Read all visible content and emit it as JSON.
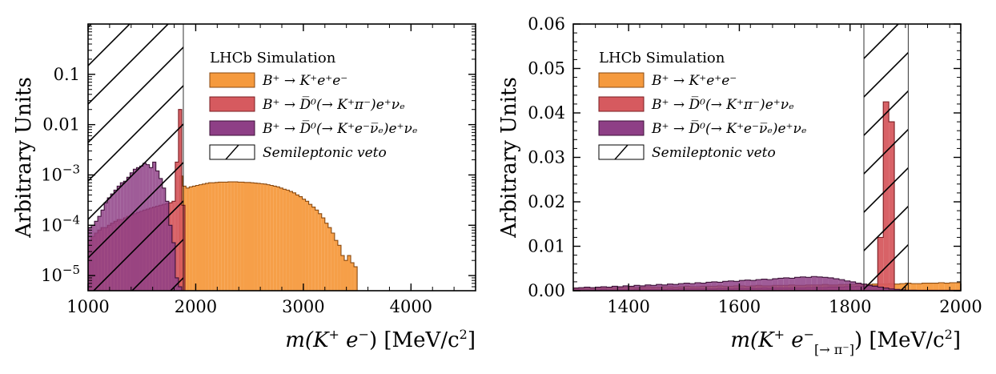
{
  "colors": {
    "signal": "#f59a3e",
    "signal_edge": "#8a4a10",
    "dpi": "#d65a5f",
    "dpi_edge": "#7a1d22",
    "dsl": "#8e3f86",
    "dsl_edge": "#3d1238",
    "veto_hatch": "#000000"
  },
  "chart_data": [
    {
      "type": "histogram",
      "yscale": "log",
      "xlabel_main": "m(K",
      "xlabel_sup1": "+",
      "xlabel_mid": " e",
      "xlabel_sup2": "−",
      "xlabel_tail": ") [MeV/c",
      "xlabel_sup3": "2",
      "xlabel_end": "]",
      "ylabel": "Arbitrary Units",
      "xlim": [
        1000,
        4600
      ],
      "ylim": [
        5e-06,
        1.0
      ],
      "xticks": [
        1000,
        2000,
        3000,
        4000
      ],
      "xtick_labels": [
        "1000",
        "2000",
        "3000",
        "4000"
      ],
      "yticks": [
        1e-05,
        0.0001,
        0.001,
        0.01,
        0.1
      ],
      "ytick_labels": [
        {
          "base": "10",
          "exp": "−5"
        },
        {
          "base": "10",
          "exp": "−4"
        },
        {
          "base": "10",
          "exp": "−3"
        },
        {
          "base": "",
          "exp": "",
          "text": "0.01"
        },
        {
          "base": "",
          "exp": "",
          "text": "0.1"
        }
      ],
      "veto": {
        "x0": 1000,
        "x1": 1885
      },
      "legend": {
        "placement": "top-right",
        "title": "LHCb Simulation",
        "entries": [
          {
            "series": "signal",
            "label": "B⁺ → K⁺e⁺e⁻"
          },
          {
            "series": "dpi",
            "label": "B⁺ → D̅⁰(→ K⁺π⁻)e⁺νₑ"
          },
          {
            "series": "dsl",
            "label": "B⁺ → D̅⁰(→ K⁺e⁻ν̅ₑ)e⁺νₑ"
          },
          {
            "series": "veto",
            "label": "Semileptonic veto"
          }
        ]
      },
      "series": [
        {
          "name": "signal",
          "edges_start": 1850,
          "bin_width": 30,
          "values": [
            0.00095,
            0.0006,
            0.00055,
            0.00058,
            0.0006,
            0.00062,
            0.00064,
            0.00066,
            0.00068,
            0.0007,
            0.0007,
            0.00071,
            0.00072,
            0.00072,
            0.00072,
            0.00073,
            0.00073,
            0.00073,
            0.00072,
            0.00072,
            0.00071,
            0.00071,
            0.0007,
            0.00069,
            0.00068,
            0.00067,
            0.00066,
            0.00064,
            0.00062,
            0.0006,
            0.00058,
            0.00055,
            0.00052,
            0.0005,
            0.00047,
            0.00044,
            0.0004,
            0.00037,
            0.00033,
            0.0003,
            0.00026,
            0.00023,
            0.0002,
            0.00017,
            0.00014,
            0.00011,
            9e-05,
            7e-05,
            5e-05,
            4e-05,
            2.5e-05,
            2e-05,
            2.5e-05,
            1.8e-05,
            1.5e-05
          ]
        },
        {
          "name": "dpi",
          "edges_start": 1000,
          "bin_width": 30,
          "values": [
            5e-05,
            6e-05,
            7e-05,
            8e-05,
            9e-05,
            9e-05,
            0.0001,
            0.00011,
            0.00012,
            0.00013,
            0.00013,
            0.00014,
            0.00015,
            0.00016,
            0.00017,
            0.00018,
            0.00019,
            0.0002,
            0.00021,
            0.00022,
            0.00023,
            0.00024,
            0.00025,
            0.00026,
            0.00027,
            0.00028,
            0.0003,
            0.0018,
            0.02,
            0.00025,
            4e-06,
            4e-06,
            4e-06,
            4.5e-06,
            4.2e-06
          ]
        },
        {
          "name": "dsl",
          "edges_start": 1000,
          "bin_width": 30,
          "values": [
            9e-05,
            0.0001,
            0.00012,
            0.00015,
            0.0002,
            0.00028,
            0.00035,
            0.00042,
            0.0005,
            0.0006,
            0.0007,
            0.00075,
            0.0009,
            0.0011,
            0.0013,
            0.0014,
            0.0015,
            0.0017,
            0.0016,
            0.0014,
            0.0018,
            0.0012,
            0.00085,
            0.00055,
            0.0003,
            0.0001,
            4.5e-05,
            9e-06,
            6e-06,
            5e-06
          ]
        }
      ]
    },
    {
      "type": "histogram",
      "yscale": "linear",
      "xlabel_main": "m(K",
      "xlabel_sup1": "+",
      "xlabel_mid": " e",
      "xlabel_sup2": "−",
      "xlabel_sub": "[→ π⁻]",
      "xlabel_tail": ") [MeV/c",
      "xlabel_sup3": "2",
      "xlabel_end": "]",
      "ylabel": "Arbitrary Units",
      "xlim": [
        1300,
        2000
      ],
      "ylim": [
        0,
        0.06
      ],
      "xticks": [
        1400,
        1600,
        1800,
        2000
      ],
      "xtick_labels": [
        "1400",
        "1600",
        "1800",
        "2000"
      ],
      "yticks": [
        0,
        0.01,
        0.02,
        0.03,
        0.04,
        0.05,
        0.06
      ],
      "ytick_labels": [
        "0.00",
        "0.01",
        "0.02",
        "0.03",
        "0.04",
        "0.05",
        "0.06"
      ],
      "veto": {
        "x0": 1825,
        "x1": 1905
      },
      "legend": {
        "placement": "top-left",
        "title": "LHCb Simulation",
        "entries": [
          {
            "series": "signal",
            "label": "B⁺ → K⁺e⁺e⁻"
          },
          {
            "series": "dpi",
            "label": "B⁺ → D̅⁰(→ K⁺π⁻)e⁺νₑ"
          },
          {
            "series": "dsl",
            "label": "B⁺ → D̅⁰(→ K⁺e⁻ν̅ₑ)e⁺νₑ"
          },
          {
            "series": "veto",
            "label": "Semileptonic veto"
          }
        ]
      },
      "series": [
        {
          "name": "signal",
          "edges_start": 1300,
          "bin_width": 10,
          "values": [
            0.0006,
            0.0006,
            0.0007,
            0.0006,
            0.0007,
            0.0007,
            0.0008,
            0.0007,
            0.0007,
            0.0008,
            0.0008,
            0.0007,
            0.0008,
            0.0009,
            0.0008,
            0.0008,
            0.0009,
            0.0009,
            0.0008,
            0.0009,
            0.001,
            0.0009,
            0.0009,
            0.001,
            0.001,
            0.001,
            0.0011,
            0.001,
            0.001,
            0.0011,
            0.0011,
            0.001,
            0.0011,
            0.0012,
            0.0011,
            0.0011,
            0.0012,
            0.0012,
            0.0012,
            0.0013,
            0.0012,
            0.0012,
            0.0013,
            0.0013,
            0.0013,
            0.0014,
            0.0013,
            0.0013,
            0.0014,
            0.0014,
            0.0014,
            0.0015,
            0.0014,
            0.0014,
            0.0015,
            0.0015,
            0.0015,
            0.0016,
            0.0015,
            0.0016,
            0.0017,
            0.0016,
            0.0016,
            0.0017,
            0.0017,
            0.0017,
            0.0018,
            0.0017,
            0.0018,
            0.0018
          ]
        },
        {
          "name": "dpi",
          "edges_start": 1300,
          "bin_width": 10,
          "values": [
            0.0002,
            0.0002,
            0.0002,
            0.0002,
            0.0002,
            0.0003,
            0.0002,
            0.0002,
            0.0003,
            0.0003,
            0.0002,
            0.0003,
            0.0003,
            0.0003,
            0.0003,
            0.0003,
            0.0003,
            0.0004,
            0.0003,
            0.0004,
            0.0004,
            0.0004,
            0.0004,
            0.0004,
            0.0004,
            0.0004,
            0.0005,
            0.0005,
            0.0004,
            0.0005,
            0.0005,
            0.0005,
            0.0005,
            0.0005,
            0.0006,
            0.0005,
            0.0006,
            0.0006,
            0.0006,
            0.0006,
            0.0006,
            0.0006,
            0.0007,
            0.0007,
            0.0007,
            0.0007,
            0.0008,
            0.0008,
            0.0008,
            0.0009,
            0.0009,
            0.001,
            0.001,
            0.001,
            0.0011,
            0.012,
            0.0425,
            0.038,
            0.0001,
            0.0001,
            0.0001,
            0.0001,
            0.0001,
            0.0001,
            0.0001,
            0.0001,
            0.0001,
            0.0001,
            0.0001,
            0.0001
          ]
        },
        {
          "name": "dsl",
          "edges_start": 1300,
          "bin_width": 10,
          "values": [
            0.0006,
            0.0007,
            0.0008,
            0.0007,
            0.0008,
            0.0009,
            0.0008,
            0.001,
            0.0009,
            0.0011,
            0.001,
            0.0012,
            0.0011,
            0.0013,
            0.0012,
            0.0014,
            0.0013,
            0.0015,
            0.0014,
            0.0016,
            0.0017,
            0.0016,
            0.0018,
            0.0017,
            0.0019,
            0.002,
            0.0019,
            0.0021,
            0.0022,
            0.0021,
            0.0023,
            0.0024,
            0.0023,
            0.0025,
            0.0026,
            0.0025,
            0.0027,
            0.0028,
            0.0029,
            0.0028,
            0.003,
            0.0031,
            0.003,
            0.0032,
            0.0031,
            0.003,
            0.0029,
            0.0027,
            0.0025,
            0.0022,
            0.002,
            0.0017,
            0.0015,
            0.0012,
            0.001,
            0.0008,
            0.0006,
            0.0004,
            0.0003,
            0.0002,
            0.0001,
            0.0001,
            5e-05,
            4e-05,
            3e-05,
            2e-05,
            2e-05,
            1e-05,
            1e-05,
            1e-05
          ]
        }
      ]
    }
  ]
}
